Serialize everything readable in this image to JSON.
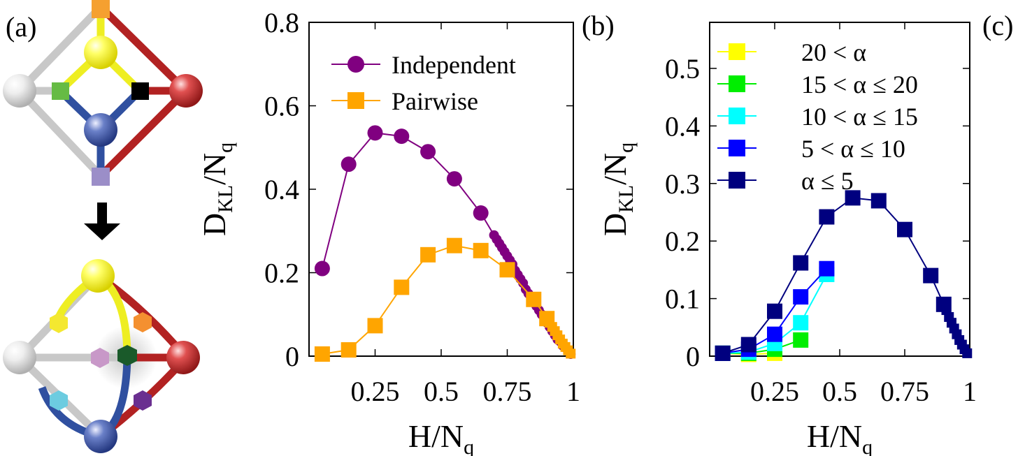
{
  "panels": {
    "a_label": "(a)",
    "b_label": "(b)",
    "c_label": "(c)"
  },
  "colors": {
    "purple": "#800080",
    "orange": "#ffa500",
    "yellow": "#ffff00",
    "green": "#00ee00",
    "cyan": "#00ffff",
    "blue": "#0000ff",
    "navy": "#00007f",
    "gray": "#c8c8c8",
    "red": "#b22222",
    "edge_yellow": "#eeee22",
    "edge_blue": "#3050a0"
  },
  "chart_data": [
    {
      "type": "line",
      "panel": "b",
      "xlabel_main": "H/N",
      "xlabel_sub": "q",
      "ylabel_main": "D",
      "ylabel_sub1": "KL",
      "ylabel_mid": "/N",
      "ylabel_sub2": "q",
      "xlim": [
        0,
        1
      ],
      "ylim": [
        0,
        0.8
      ],
      "xticks": [
        0.25,
        0.5,
        0.75,
        1
      ],
      "xtick_labels": [
        "0.25",
        "0.5",
        "0.75",
        "1"
      ],
      "yticks": [
        0,
        0.2,
        0.4,
        0.6,
        0.8
      ],
      "ytick_labels": [
        "0",
        "0.2",
        "0.4",
        "0.6",
        "0.8"
      ],
      "legend": "top-left",
      "series": [
        {
          "name": "Independent",
          "marker": "circle",
          "color": "#800080",
          "x": [
            0.05,
            0.15,
            0.25,
            0.35,
            0.45,
            0.55,
            0.65,
            0.7,
            0.71,
            0.72,
            0.73,
            0.74,
            0.75,
            0.76,
            0.77,
            0.78,
            0.79,
            0.8,
            0.81,
            0.82,
            0.83,
            0.84,
            0.85,
            0.86,
            0.87,
            0.88,
            0.89,
            0.9,
            0.91,
            0.92,
            0.93,
            0.94,
            0.95,
            0.96,
            0.97,
            0.98,
            0.99
          ],
          "y": [
            0.21,
            0.46,
            0.535,
            0.527,
            0.49,
            0.425,
            0.343,
            0.29,
            0.28,
            0.27,
            0.26,
            0.25,
            0.24,
            0.23,
            0.22,
            0.205,
            0.195,
            0.185,
            0.175,
            0.16,
            0.15,
            0.14,
            0.13,
            0.12,
            0.11,
            0.1,
            0.09,
            0.08,
            0.07,
            0.06,
            0.05,
            0.04,
            0.035,
            0.025,
            0.02,
            0.012,
            0.005
          ]
        },
        {
          "name": "Pairwise",
          "marker": "square",
          "color": "#ffa500",
          "x": [
            0.05,
            0.15,
            0.25,
            0.35,
            0.45,
            0.55,
            0.65,
            0.75,
            0.85,
            0.9,
            0.91,
            0.92,
            0.93,
            0.94,
            0.95,
            0.96,
            0.97,
            0.98,
            0.99
          ],
          "y": [
            0.005,
            0.015,
            0.073,
            0.165,
            0.243,
            0.265,
            0.253,
            0.207,
            0.136,
            0.09,
            0.08,
            0.07,
            0.06,
            0.05,
            0.04,
            0.03,
            0.022,
            0.014,
            0.006
          ]
        }
      ]
    },
    {
      "type": "line",
      "panel": "c",
      "xlabel_main": "H/N",
      "xlabel_sub": "q",
      "ylabel_main": "D",
      "ylabel_sub1": "KL",
      "ylabel_mid": "/N",
      "ylabel_sub2": "q",
      "xlim": [
        0,
        1
      ],
      "ylim": [
        0,
        0.58
      ],
      "xticks": [
        0.25,
        0.5,
        0.75,
        1
      ],
      "xtick_labels": [
        "0.25",
        "0.5",
        "0.75",
        "1"
      ],
      "yticks": [
        0,
        0.1,
        0.2,
        0.3,
        0.4,
        0.5
      ],
      "ytick_labels": [
        "0",
        "0.1",
        "0.2",
        "0.3",
        "0.4",
        "0.5"
      ],
      "legend": "top-left",
      "series": [
        {
          "name": "20 < α",
          "marker": "square",
          "color": "#ffff00",
          "x": [
            0.05,
            0.15,
            0.25
          ],
          "y": [
            0.005,
            0.003,
            0.005
          ]
        },
        {
          "name": "15 < α ≤ 20",
          "marker": "square",
          "color": "#00ee00",
          "x": [
            0.05,
            0.15,
            0.25,
            0.35
          ],
          "y": [
            0.005,
            0.005,
            0.012,
            0.028
          ]
        },
        {
          "name": "10 < α ≤ 15",
          "marker": "square",
          "color": "#00ffff",
          "x": [
            0.05,
            0.15,
            0.25,
            0.35,
            0.45
          ],
          "y": [
            0.005,
            0.007,
            0.022,
            0.058,
            0.142
          ]
        },
        {
          "name": "5 < α ≤ 10",
          "marker": "square",
          "color": "#0000ff",
          "x": [
            0.05,
            0.15,
            0.25,
            0.35,
            0.45
          ],
          "y": [
            0.005,
            0.012,
            0.038,
            0.103,
            0.152
          ]
        },
        {
          "name": "α ≤ 5",
          "marker": "square",
          "color": "#00007f",
          "x": [
            0.05,
            0.15,
            0.25,
            0.35,
            0.45,
            0.55,
            0.65,
            0.75,
            0.85,
            0.9,
            0.91,
            0.92,
            0.93,
            0.94,
            0.95,
            0.96,
            0.97,
            0.98,
            0.99
          ],
          "y": [
            0.005,
            0.02,
            0.078,
            0.162,
            0.242,
            0.275,
            0.27,
            0.22,
            0.14,
            0.09,
            0.08,
            0.068,
            0.058,
            0.048,
            0.038,
            0.028,
            0.02,
            0.012,
            0.005
          ]
        }
      ]
    }
  ]
}
